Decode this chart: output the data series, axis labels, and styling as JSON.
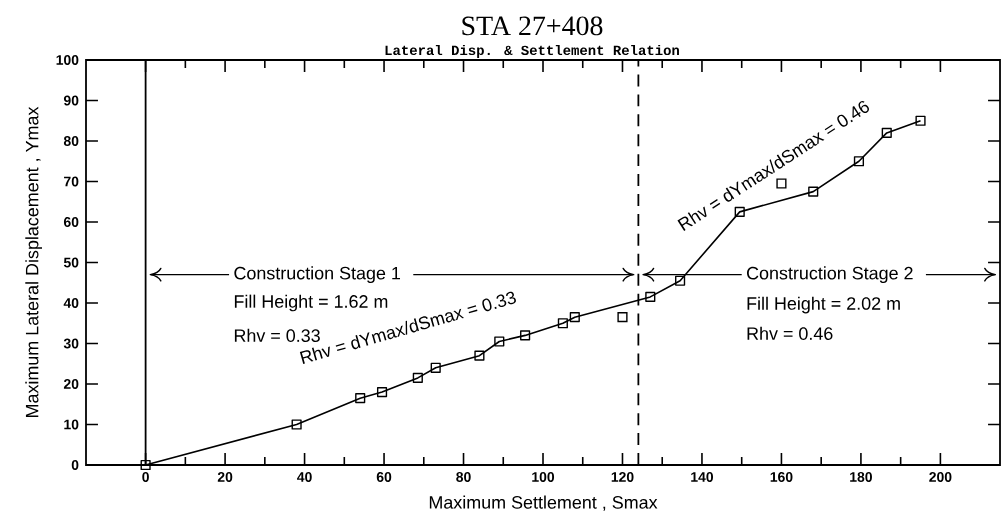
{
  "chart_data": {
    "type": "line",
    "title": "STA 27+408",
    "subtitle": "Lateral Disp. & Settlement Relation",
    "xlabel": "Maximum Settlement , Smax",
    "ylabel": "Maximum Lateral Displacement , Ymax",
    "xlim": [
      -15,
      215
    ],
    "ylim": [
      0,
      100
    ],
    "xticks": [
      0,
      20,
      40,
      60,
      80,
      100,
      120,
      140,
      160,
      180,
      200
    ],
    "yticks": [
      0,
      10,
      20,
      30,
      40,
      50,
      60,
      70,
      80,
      90,
      100
    ],
    "grid": false,
    "marker": "square",
    "line_style": "solid",
    "series": [
      {
        "type": "line",
        "color": "#000000",
        "x": [
          0,
          38,
          54,
          59.5,
          68.5,
          73,
          84,
          89,
          95.5,
          105,
          108,
          127,
          134.5,
          149.5,
          168,
          179.5,
          186.5,
          195
        ],
        "values": [
          0,
          10,
          16.5,
          18,
          21.5,
          24,
          27,
          30.5,
          32,
          35,
          36.5,
          41.5,
          45.5,
          62.5,
          67.5,
          75,
          82,
          85
        ]
      },
      {
        "type": "scatter",
        "color": "#000000",
        "x": [
          120,
          160
        ],
        "values": [
          36.5,
          69.5
        ]
      }
    ],
    "ref_lines": [
      {
        "axis": "x",
        "value": 0,
        "line_style": "solid",
        "color": "#000000"
      },
      {
        "axis": "x",
        "value": 124,
        "line_style": "dashed",
        "color": "#000000"
      }
    ],
    "annotations": [
      "Construction Stage 1",
      "Fill Height = 1.62 m",
      "Rhv = 0.33",
      "Rhv = dYmax/dSmax = 0.33",
      "Construction Stage 2",
      "Fill Height = 2.02 m",
      "Rhv = 0.46",
      "Rhv = dYmax/dSmax = 0.46"
    ]
  }
}
